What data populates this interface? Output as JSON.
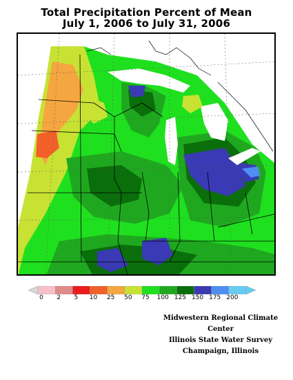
{
  "title": {
    "line1": "Total Precipitation Percent of Mean",
    "line2": "July 1, 2006 to July 31, 2006"
  },
  "legend": {
    "bins": [
      {
        "label": "0",
        "color": "#f6c1c9"
      },
      {
        "label": "2",
        "color": "#e08a8a"
      },
      {
        "label": "5",
        "color": "#ea1c1c"
      },
      {
        "label": "10",
        "color": "#f2602a"
      },
      {
        "label": "25",
        "color": "#f5a640"
      },
      {
        "label": "50",
        "color": "#c8e234"
      },
      {
        "label": "75",
        "color": "#1fe01f"
      },
      {
        "label": "100",
        "color": "#1fa81f"
      },
      {
        "label": "125",
        "color": "#0a6e0a"
      },
      {
        "label": "150",
        "color": "#3a3ab4"
      },
      {
        "label": "175",
        "color": "#4e8ef2"
      },
      {
        "label": "200",
        "color": "#66ccf2"
      }
    ]
  },
  "credits": {
    "line1": "Midwestern Regional Climate Center",
    "line2": "Illinois State Water Survey",
    "line3": "Champaign, Illinois"
  }
}
